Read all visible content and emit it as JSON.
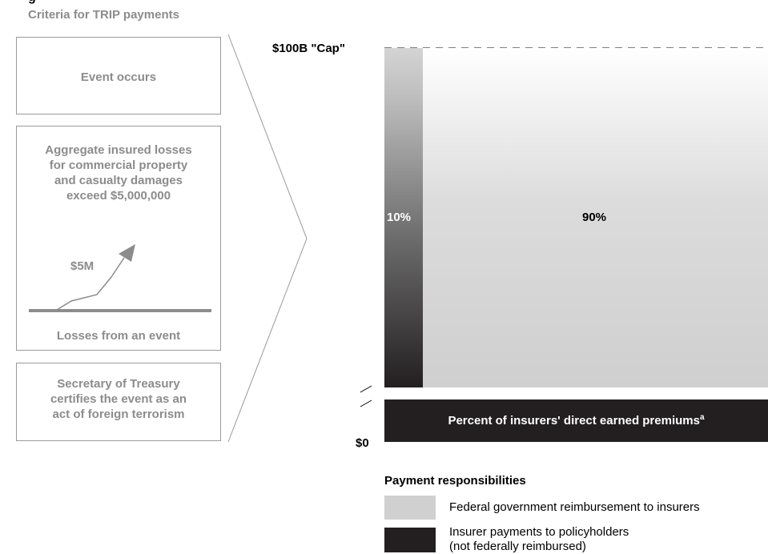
{
  "left_panel": {
    "title_partial": "g",
    "subtitle": "Criteria for TRIP payments",
    "box1_text": "Event occurs",
    "box2_lines": [
      "Aggregate insured losses",
      "for commercial property",
      "and casualty damages",
      "exceed $5,000,000"
    ],
    "chart_label": "$5M",
    "chart_caption": "Losses from an event",
    "box3_lines": [
      "Secretary of Treasury",
      "certifies the event as an",
      "act of foreign terrorism"
    ]
  },
  "right_panel": {
    "cap_label": "$100B \"Cap\"",
    "zero_label": "$0",
    "left_pct": "10%",
    "right_pct": "90%",
    "base_bar_label": "Percent of insurers' direct earned premiums",
    "base_bar_superscript": "a"
  },
  "legend": {
    "title": "Payment responsibilities",
    "items": [
      {
        "label": "Federal government reimbursement to insurers",
        "color": "#d0d0d0"
      },
      {
        "label_lines": [
          "Insurer payments to policyholders",
          "(not federally reimbursed)"
        ],
        "color": "#231f20"
      }
    ]
  },
  "colors": {
    "box_text": "#8c8c8c",
    "dark": "#231f20",
    "light_grey": "#d0d0d0",
    "line": "#9a9a9a"
  }
}
